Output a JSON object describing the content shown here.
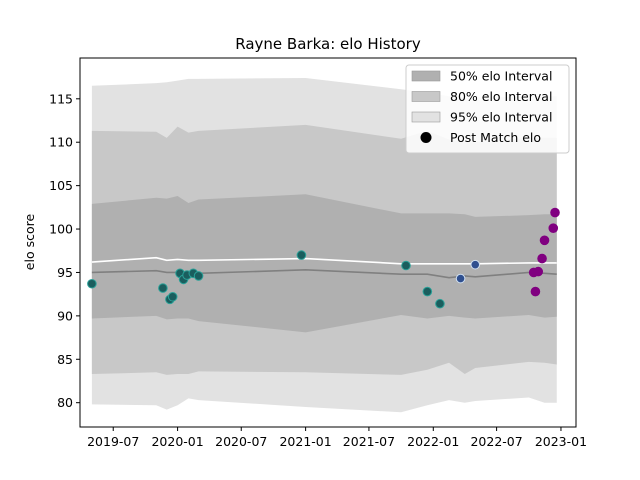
{
  "chart_data": {
    "type": "scatter",
    "title": "Rayne Barka: elo History",
    "xlabel": "",
    "ylabel": "elo score",
    "xlim": [
      "2019-03-28",
      "2023-02-13"
    ],
    "ylim": [
      77.2,
      119.7
    ],
    "x_ticks": [
      "2019-07",
      "2020-01",
      "2020-07",
      "2021-01",
      "2021-07",
      "2022-01",
      "2022-07",
      "2023-01"
    ],
    "y_ticks": [
      80,
      85,
      90,
      95,
      100,
      105,
      110,
      115
    ],
    "grid": false,
    "legend_position": "top-right",
    "legend": [
      {
        "label": "50% elo Interval",
        "color": "#b0b0b0"
      },
      {
        "label": "80% elo Interval",
        "color": "#c8c8c8"
      },
      {
        "label": "95% elo Interval",
        "color": "#e2e2e2"
      },
      {
        "label": "Post Match elo",
        "color": "#000000"
      }
    ],
    "bands": {
      "x": [
        "2019-05-01",
        "2019-11-01",
        "2019-12-01",
        "2020-01-01",
        "2020-02-01",
        "2020-03-01",
        "2021-01-01",
        "2021-10-01",
        "2021-12-15",
        "2022-02-15",
        "2022-04-01",
        "2022-05-01",
        "2022-10-01",
        "2022-11-15",
        "2022-12-20"
      ],
      "median": [
        95.0,
        95.2,
        95.0,
        95.0,
        94.8,
        94.9,
        95.3,
        94.8,
        94.8,
        94.4,
        94.6,
        94.5,
        95.0,
        94.9,
        94.8
      ],
      "p50": {
        "lo": [
          89.7,
          90.0,
          89.6,
          89.7,
          89.7,
          89.4,
          88.1,
          90.1,
          89.7,
          90.0,
          89.8,
          89.7,
          90.1,
          89.8,
          89.9
        ],
        "hi": [
          102.9,
          103.6,
          103.5,
          103.8,
          103.0,
          103.4,
          104.0,
          101.8,
          101.8,
          101.8,
          101.7,
          101.4,
          101.6,
          101.7,
          101.7
        ]
      },
      "p80": {
        "lo": [
          83.3,
          83.5,
          83.2,
          83.3,
          83.3,
          83.6,
          83.5,
          83.2,
          83.8,
          84.6,
          83.3,
          84.0,
          84.7,
          84.6,
          84.4
        ],
        "hi": [
          111.3,
          111.2,
          110.5,
          111.8,
          111.1,
          111.3,
          112.0,
          110.4,
          111.3,
          110.3,
          110.0,
          110.0,
          110.5,
          110.5,
          110.5
        ]
      },
      "p95": {
        "lo": [
          79.8,
          79.7,
          79.2,
          79.7,
          80.5,
          80.3,
          79.5,
          78.9,
          79.7,
          80.3,
          80.0,
          80.2,
          80.6,
          80.0,
          80.0
        ],
        "hi": [
          116.5,
          116.8,
          116.9,
          117.1,
          117.3,
          117.3,
          117.4,
          116.1,
          115.7,
          115.3,
          115.1,
          115.1,
          115.3,
          115.3,
          115.3
        ]
      }
    },
    "trend_line": {
      "color": "#ffffff",
      "y": [
        96.2,
        96.7,
        96.4,
        96.5,
        96.4,
        96.4,
        96.6,
        96.0,
        96.0,
        96.0,
        96.0,
        96.0,
        96.1,
        96.1,
        96.1
      ]
    },
    "series": [
      {
        "color": "#1a5e5e",
        "points": [
          {
            "x": "2019-05-01",
            "y": 93.7
          },
          {
            "x": "2019-11-20",
            "y": 93.2
          },
          {
            "x": "2019-12-10",
            "y": 91.9
          },
          {
            "x": "2019-12-18",
            "y": 92.2
          },
          {
            "x": "2020-01-08",
            "y": 94.9
          },
          {
            "x": "2020-01-18",
            "y": 94.2
          },
          {
            "x": "2020-01-28",
            "y": 94.7
          },
          {
            "x": "2020-02-15",
            "y": 94.9
          },
          {
            "x": "2020-03-01",
            "y": 94.6
          },
          {
            "x": "2020-12-20",
            "y": 97.0
          },
          {
            "x": "2021-10-15",
            "y": 95.8
          },
          {
            "x": "2021-12-15",
            "y": 92.8
          },
          {
            "x": "2022-01-20",
            "y": 91.4
          }
        ]
      },
      {
        "color": "#2f4f8f",
        "points": [
          {
            "x": "2022-03-20",
            "y": 94.3
          },
          {
            "x": "2022-05-01",
            "y": 95.9
          }
        ]
      },
      {
        "color": "#800080",
        "points": [
          {
            "x": "2022-10-15",
            "y": 95.0
          },
          {
            "x": "2022-10-20",
            "y": 92.8
          },
          {
            "x": "2022-10-28",
            "y": 95.1
          },
          {
            "x": "2022-11-08",
            "y": 96.6
          },
          {
            "x": "2022-11-15",
            "y": 98.7
          },
          {
            "x": "2022-12-10",
            "y": 100.1
          },
          {
            "x": "2022-12-15",
            "y": 101.9
          }
        ]
      }
    ]
  }
}
